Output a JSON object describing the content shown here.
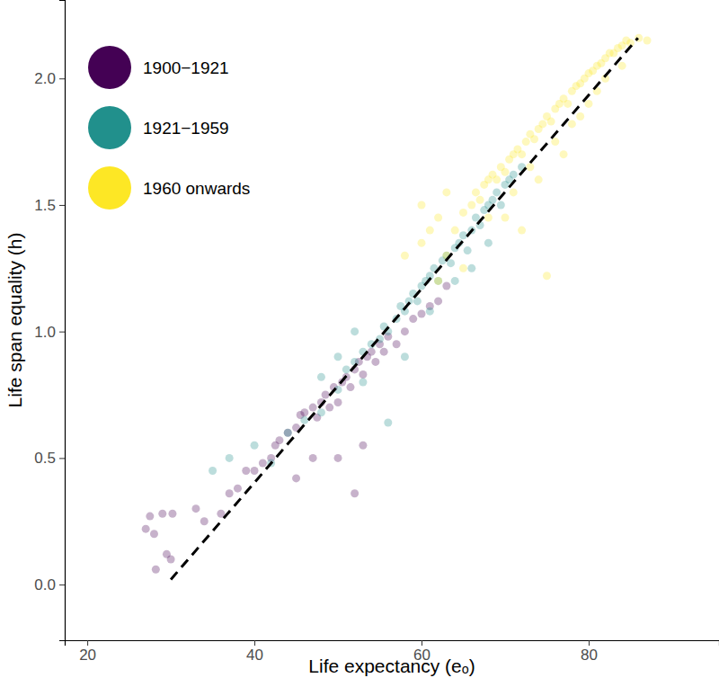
{
  "chart_data": {
    "type": "scatter",
    "x_label": "Life expectancy (eₒ)",
    "y_label": "Life span equality (h)",
    "xlim": [
      17.3,
      95.6
    ],
    "xticks": [
      20,
      40,
      60,
      80
    ],
    "ylim": [
      -0.22,
      2.31
    ],
    "yticks": [
      {
        "value": 0,
        "label": "0.0"
      },
      0.5,
      {
        "value": 1,
        "label": "1.0"
      },
      1.5,
      {
        "value": 2,
        "label": "2.0"
      }
    ],
    "grid": false,
    "legend": "top-left",
    "series": [
      {
        "name": "1900−1921",
        "color": "#440154",
        "marker": "circle",
        "x": [
          27,
          27.5,
          28,
          28.2,
          29,
          29.5,
          30,
          30.2,
          33,
          34,
          36,
          37,
          38,
          39,
          40,
          41,
          42,
          42.5,
          43,
          44,
          45,
          45.5,
          46,
          47,
          47.5,
          48,
          48.5,
          49,
          49.5,
          50,
          50.5,
          51,
          51.5,
          52,
          52.5,
          53,
          53.5,
          54,
          54.5,
          55,
          55.5,
          56,
          57,
          58,
          59,
          60,
          61,
          62,
          52,
          50,
          47,
          45,
          53,
          63
        ],
        "values": [
          0.22,
          0.27,
          0.2,
          0.06,
          0.28,
          0.12,
          0.1,
          0.28,
          0.3,
          0.25,
          0.28,
          0.36,
          0.38,
          0.45,
          0.45,
          0.48,
          0.5,
          0.55,
          0.57,
          0.6,
          0.62,
          0.67,
          0.68,
          0.7,
          0.66,
          0.72,
          0.75,
          0.7,
          0.78,
          0.72,
          0.8,
          0.82,
          0.78,
          0.85,
          0.88,
          0.83,
          0.9,
          0.92,
          0.88,
          0.95,
          0.92,
          0.98,
          0.95,
          1.0,
          1.05,
          1.07,
          1.1,
          1.12,
          0.36,
          0.5,
          0.5,
          0.42,
          0.55,
          1.18
        ]
      },
      {
        "name": "1921−1959",
        "color": "#21908c",
        "marker": "circle",
        "x": [
          35,
          37,
          40,
          42,
          44,
          46,
          48,
          50,
          51,
          52,
          53,
          54,
          55,
          55.5,
          56,
          57,
          57.5,
          58,
          58.5,
          59,
          59.5,
          60,
          60.5,
          61,
          61.5,
          62,
          62.5,
          63,
          63.5,
          64,
          64.5,
          65,
          65.5,
          66,
          66.5,
          67,
          67.5,
          68,
          68.5,
          69,
          69.5,
          70,
          70.5,
          71,
          72,
          56,
          58,
          61,
          64,
          66,
          68,
          53,
          50,
          52,
          48
        ],
        "values": [
          0.45,
          0.5,
          0.55,
          0.48,
          0.6,
          0.65,
          0.68,
          0.77,
          0.85,
          0.88,
          0.92,
          0.95,
          0.97,
          1.02,
          1.0,
          1.05,
          1.1,
          1.08,
          1.12,
          1.15,
          1.12,
          1.18,
          1.2,
          1.22,
          1.25,
          1.2,
          1.28,
          1.3,
          1.27,
          1.33,
          1.35,
          1.38,
          1.32,
          1.4,
          1.45,
          1.42,
          1.48,
          1.5,
          1.52,
          1.55,
          1.5,
          1.58,
          1.6,
          1.62,
          1.65,
          0.64,
          0.9,
          1.08,
          1.2,
          1.25,
          1.35,
          0.8,
          0.9,
          1.0,
          0.82
        ]
      },
      {
        "name": "1960 onwards",
        "color": "#fde725",
        "marker": "circle",
        "x": [
          58,
          60,
          61,
          62,
          63,
          64,
          65,
          66,
          66.5,
          67,
          67.5,
          68,
          68.5,
          69,
          69.5,
          70,
          70.5,
          71,
          71.5,
          72,
          72.5,
          73,
          73.5,
          74,
          74.5,
          75,
          75.5,
          76,
          76.5,
          77,
          77.5,
          78,
          78.5,
          79,
          79.5,
          80,
          80.5,
          81,
          81.5,
          82,
          82.5,
          83,
          83.5,
          84,
          84.5,
          85,
          86,
          87,
          75,
          72,
          70,
          68,
          74,
          77,
          79,
          81,
          65,
          62,
          63,
          60,
          76,
          78,
          80,
          82,
          84,
          71,
          73
        ],
        "values": [
          1.3,
          1.35,
          1.4,
          1.45,
          1.3,
          1.4,
          1.47,
          1.5,
          1.55,
          1.52,
          1.58,
          1.6,
          1.62,
          1.6,
          1.65,
          1.63,
          1.68,
          1.7,
          1.72,
          1.7,
          1.75,
          1.78,
          1.76,
          1.8,
          1.82,
          1.85,
          1.83,
          1.88,
          1.9,
          1.92,
          1.9,
          1.95,
          1.97,
          1.98,
          2.0,
          2.02,
          2.03,
          2.05,
          2.06,
          2.08,
          2.1,
          2.1,
          2.12,
          2.13,
          2.15,
          2.14,
          2.16,
          2.15,
          1.22,
          1.4,
          1.45,
          1.45,
          1.6,
          1.7,
          1.85,
          1.95,
          1.25,
          1.2,
          1.55,
          1.5,
          1.75,
          1.82,
          1.9,
          2.0,
          2.05,
          1.55,
          1.65
        ]
      },
      {
        "type": "line",
        "line_style": "dashed",
        "color": "#000000",
        "x": [
          30.0,
          85.9
        ],
        "values": [
          0.02,
          2.16
        ]
      }
    ]
  }
}
